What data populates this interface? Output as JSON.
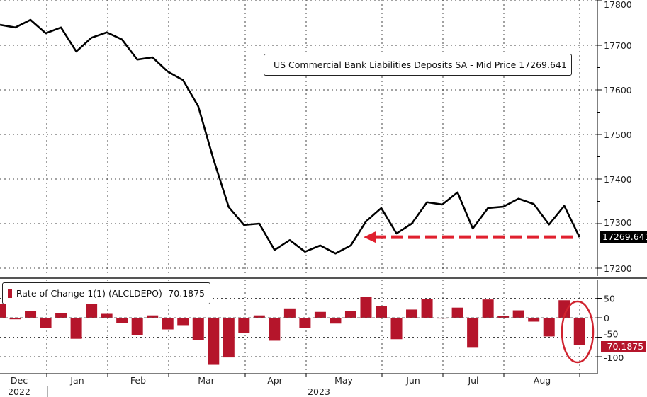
{
  "colors": {
    "line": "#000000",
    "bar": "#b5152b",
    "annotation": "#e0202e"
  },
  "chart_data": [
    {
      "type": "line",
      "legend": "US Commercial Bank Liabilities Deposits SA - Mid Price 17269.641",
      "last_value_label": "17269.641",
      "ylim": [
        17200,
        17800
      ],
      "y_ticks": [
        "17800",
        "17700",
        "17600",
        "17500",
        "17400",
        "17300",
        "17200"
      ],
      "grid": true,
      "legend_placement": "top-right",
      "values": [
        17746,
        17740,
        17757,
        17727,
        17740,
        17686,
        17717,
        17729,
        17713,
        17668,
        17673,
        17641,
        17622,
        17563,
        17444,
        17337,
        17297,
        17300,
        17241,
        17263,
        17237,
        17251,
        17233,
        17251,
        17305,
        17335,
        17278,
        17300,
        17348,
        17343,
        17370,
        17289,
        17335,
        17338,
        17356,
        17344,
        17298,
        17340,
        17269.641
      ],
      "annotation": "red dashed arrow pointing left at last value level"
    },
    {
      "type": "bar",
      "legend": "Rate of Change 1(1) (ALCLDEPO) -70.1875",
      "last_value_label": "-70.1875",
      "ylim": [
        -150,
        80
      ],
      "y_ticks": [
        "50",
        "0",
        "-50",
        "-100"
      ],
      "grid": true,
      "legend_placement": "top-left",
      "values": [
        35,
        -4,
        17,
        -27,
        12,
        -54,
        35,
        10,
        -13,
        -44,
        6,
        -30,
        -19,
        -57,
        -121,
        -102,
        -39,
        6,
        -59,
        24,
        -26,
        15,
        -15,
        17,
        53,
        30,
        -55,
        21,
        48,
        -2,
        26,
        -77,
        47,
        4,
        19,
        -10,
        -48,
        45,
        -70.1875
      ],
      "annotation": "red ellipse around last bar"
    }
  ],
  "x_axis": {
    "months": [
      "Dec",
      "Jan",
      "Feb",
      "Mar",
      "Apr",
      "May",
      "Jun",
      "Jul",
      "Aug"
    ],
    "years": [
      "2022",
      "2023"
    ]
  }
}
